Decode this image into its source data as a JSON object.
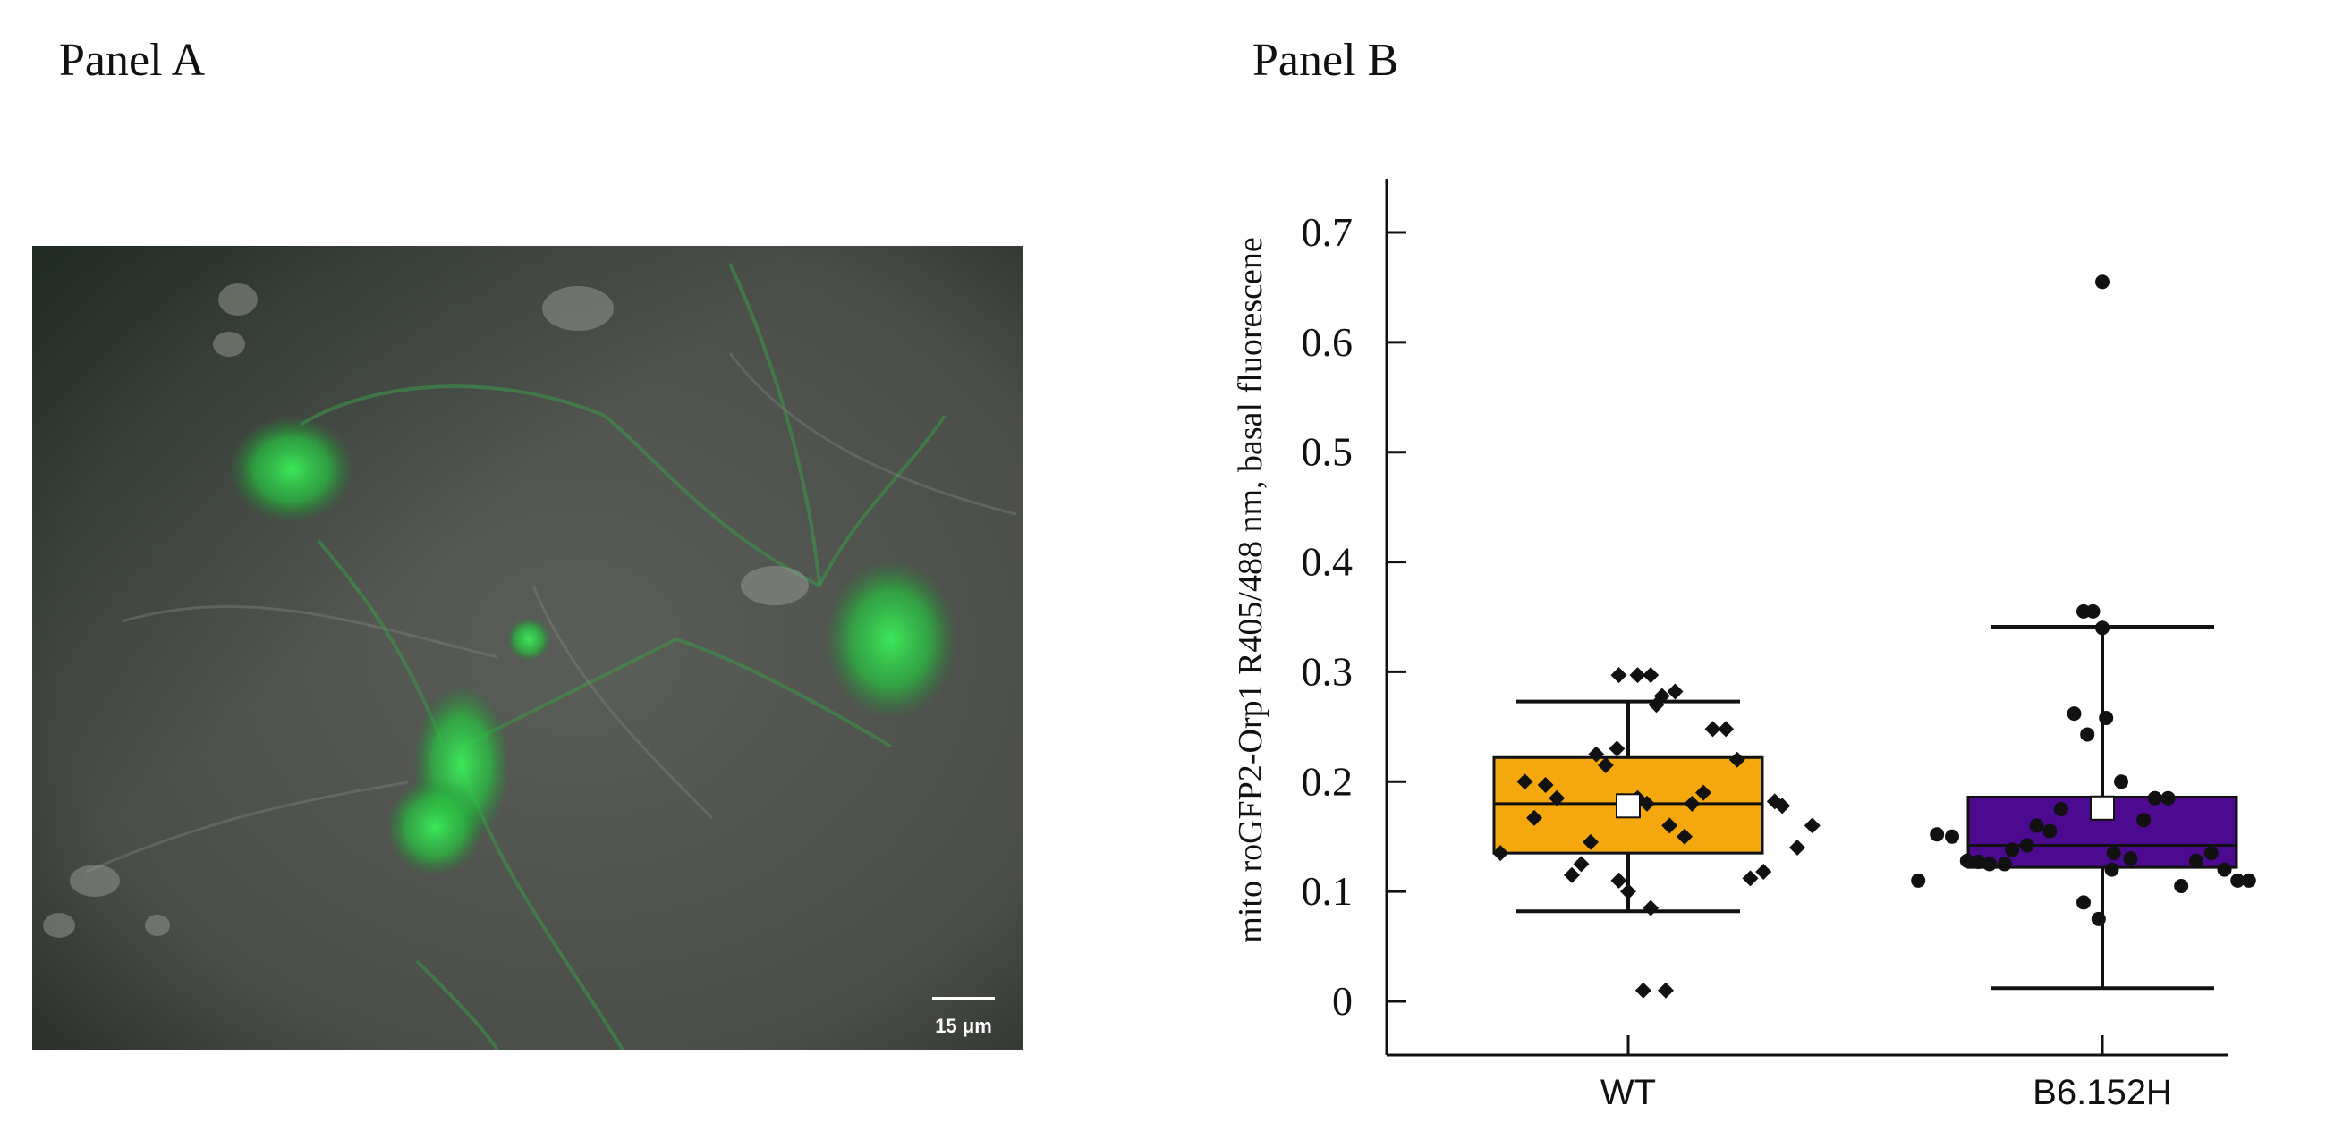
{
  "panels": {
    "a_label": "Panel A",
    "b_label": "Panel B"
  },
  "micrograph": {
    "scale_bar_label": "15 μm",
    "description_colors": {
      "background": "#4a4d48",
      "fluorescence": "#2fd24a"
    }
  },
  "chart_data": {
    "type": "box",
    "title": "",
    "xlabel": "",
    "ylabel": "mito roGFP2-Orp1 R405/488 nm, basal fluorescene",
    "ylim": [
      -0.05,
      0.75
    ],
    "yticks": [
      0,
      0.1,
      0.2,
      0.3,
      0.4,
      0.5,
      0.6,
      0.7
    ],
    "ytick_labels": [
      "0",
      "0.1",
      "0.2",
      "0.3",
      "0.4",
      "0.5",
      "0.6",
      "0.7"
    ],
    "categories": [
      "WT",
      "B6.152H"
    ],
    "series": [
      {
        "category": "WT",
        "color": "#f5a70e",
        "marker": "diamond",
        "q1": 0.135,
        "median": 0.18,
        "q3": 0.222,
        "whisker_low": 0.082,
        "whisker_high": 0.273,
        "mean": 0.178,
        "points": [
          {
            "x": -0.68,
            "y": 0.135
          },
          {
            "x": -0.55,
            "y": 0.2
          },
          {
            "x": -0.5,
            "y": 0.167
          },
          {
            "x": -0.44,
            "y": 0.197
          },
          {
            "x": -0.38,
            "y": 0.185
          },
          {
            "x": -0.3,
            "y": 0.115
          },
          {
            "x": -0.25,
            "y": 0.125
          },
          {
            "x": -0.2,
            "y": 0.145
          },
          {
            "x": -0.17,
            "y": 0.225
          },
          {
            "x": -0.12,
            "y": 0.215
          },
          {
            "x": -0.06,
            "y": 0.23
          },
          {
            "x": -0.05,
            "y": 0.11
          },
          {
            "x": 0.0,
            "y": 0.1
          },
          {
            "x": 0.05,
            "y": 0.185
          },
          {
            "x": 0.1,
            "y": 0.18
          },
          {
            "x": 0.12,
            "y": 0.085
          },
          {
            "x": 0.08,
            "y": 0.01
          },
          {
            "x": 0.2,
            "y": 0.01
          },
          {
            "x": -0.05,
            "y": 0.297
          },
          {
            "x": 0.05,
            "y": 0.297
          },
          {
            "x": 0.12,
            "y": 0.297
          },
          {
            "x": 0.18,
            "y": 0.278
          },
          {
            "x": 0.25,
            "y": 0.282
          },
          {
            "x": 0.15,
            "y": 0.27
          },
          {
            "x": 0.22,
            "y": 0.16
          },
          {
            "x": 0.3,
            "y": 0.15
          },
          {
            "x": 0.34,
            "y": 0.18
          },
          {
            "x": 0.4,
            "y": 0.19
          },
          {
            "x": 0.45,
            "y": 0.248
          },
          {
            "x": 0.52,
            "y": 0.248
          },
          {
            "x": 0.58,
            "y": 0.22
          },
          {
            "x": 0.65,
            "y": 0.112
          },
          {
            "x": 0.72,
            "y": 0.118
          },
          {
            "x": 0.78,
            "y": 0.182
          },
          {
            "x": 0.82,
            "y": 0.178
          },
          {
            "x": 0.9,
            "y": 0.14
          },
          {
            "x": 0.98,
            "y": 0.16
          }
        ]
      },
      {
        "category": "B6.152H",
        "color": "#4b0a8f",
        "marker": "circle",
        "q1": 0.122,
        "median": 0.142,
        "q3": 0.186,
        "whisker_low": 0.012,
        "whisker_high": 0.341,
        "mean": 0.176,
        "points": [
          {
            "x": -0.98,
            "y": 0.11
          },
          {
            "x": -0.88,
            "y": 0.152
          },
          {
            "x": -0.8,
            "y": 0.15
          },
          {
            "x": -0.72,
            "y": 0.128
          },
          {
            "x": -0.66,
            "y": 0.127
          },
          {
            "x": -0.6,
            "y": 0.125
          },
          {
            "x": -0.52,
            "y": 0.125
          },
          {
            "x": -0.48,
            "y": 0.138
          },
          {
            "x": -0.4,
            "y": 0.142
          },
          {
            "x": -0.35,
            "y": 0.16
          },
          {
            "x": -0.28,
            "y": 0.155
          },
          {
            "x": -0.22,
            "y": 0.175
          },
          {
            "x": -0.15,
            "y": 0.262
          },
          {
            "x": -0.08,
            "y": 0.243
          },
          {
            "x": 0.02,
            "y": 0.258
          },
          {
            "x": -0.1,
            "y": 0.355
          },
          {
            "x": -0.05,
            "y": 0.355
          },
          {
            "x": 0.0,
            "y": 0.34
          },
          {
            "x": 0.0,
            "y": 0.655
          },
          {
            "x": -0.1,
            "y": 0.09
          },
          {
            "x": -0.02,
            "y": 0.075
          },
          {
            "x": 0.06,
            "y": 0.135
          },
          {
            "x": 0.1,
            "y": 0.2
          },
          {
            "x": 0.15,
            "y": 0.13
          },
          {
            "x": 0.22,
            "y": 0.165
          },
          {
            "x": 0.28,
            "y": 0.185
          },
          {
            "x": 0.35,
            "y": 0.185
          },
          {
            "x": 0.42,
            "y": 0.105
          },
          {
            "x": 0.5,
            "y": 0.128
          },
          {
            "x": 0.58,
            "y": 0.135
          },
          {
            "x": 0.65,
            "y": 0.12
          },
          {
            "x": 0.72,
            "y": 0.11
          },
          {
            "x": 0.78,
            "y": 0.11
          },
          {
            "x": 0.05,
            "y": 0.12
          }
        ]
      }
    ],
    "legend": "none",
    "grid": false
  }
}
